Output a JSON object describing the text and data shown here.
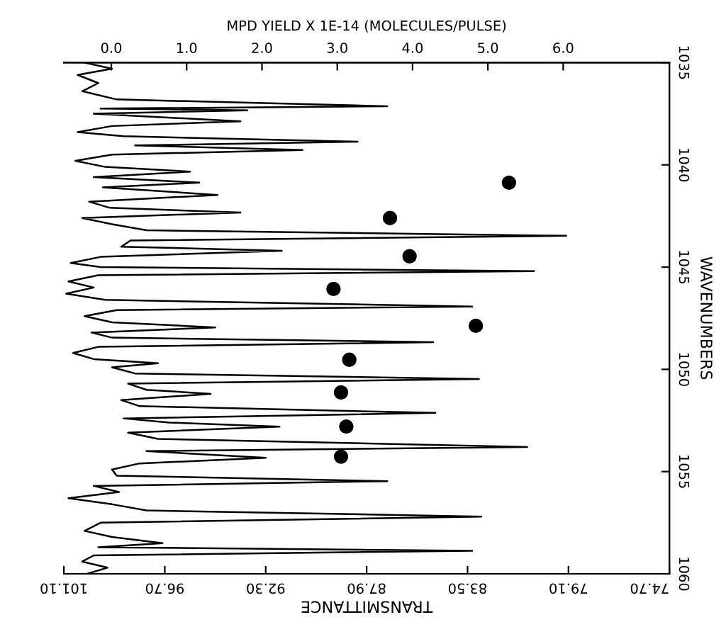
{
  "chart_data": {
    "type": "line",
    "xlabel": "TRANSMITTANCE",
    "x2label": "MPD YIELD X 1E-14 (MOLECULES/PULSE)",
    "ylabel": "WAVENUMBERS",
    "xlim": [
      101.1,
      74.7
    ],
    "xticks": [
      {
        "value": 101.1,
        "label": "101.10"
      },
      {
        "value": 96.7,
        "label": "96.70"
      },
      {
        "value": 92.3,
        "label": "92.30"
      },
      {
        "value": 87.9,
        "label": "87.90"
      },
      {
        "value": 83.5,
        "label": "83.50"
      },
      {
        "value": 79.1,
        "label": "79.10"
      },
      {
        "value": 74.7,
        "label": "74.70"
      }
    ],
    "x2lim": [
      -0.63,
      7.41
    ],
    "x2ticks": [
      {
        "value": 0,
        "label": "0.0"
      },
      {
        "value": 1,
        "label": "1.0"
      },
      {
        "value": 2,
        "label": "2.0"
      },
      {
        "value": 3,
        "label": "3.0"
      },
      {
        "value": 4,
        "label": "4.0"
      },
      {
        "value": 5,
        "label": "5.0"
      },
      {
        "value": 6,
        "label": "6.0"
      }
    ],
    "ylim": [
      1060,
      1035
    ],
    "yticks": [
      1035,
      1040,
      1045,
      1050,
      1055,
      1060
    ],
    "grid": false,
    "series": [
      {
        "color": "#000000",
        "marker": "none",
        "line_style": "solid",
        "x": [
          100.2,
          99.0,
          100.5,
          99.6,
          100.3,
          98.8,
          87.0,
          99.5,
          93.1,
          99.8,
          93.4,
          99.0,
          100.5,
          98.5,
          88.3,
          98.0,
          90.7,
          99.0,
          100.6,
          99.3,
          95.6,
          99.8,
          95.2,
          99.4,
          94.4,
          100.0,
          99.1,
          93.4,
          100.3,
          99.0,
          97.5,
          79.2,
          98.2,
          98.6,
          91.6,
          99.5,
          100.8,
          99.5,
          80.6,
          99.6,
          100.9,
          99.8,
          101.0,
          99.3,
          83.3,
          98.8,
          100.2,
          99.0,
          94.5,
          99.9,
          99.0,
          85.0,
          99.6,
          100.7,
          99.8,
          97.0,
          99.0,
          98.0,
          83.0,
          98.3,
          97.5,
          94.7,
          98.6,
          97.8,
          84.9,
          98.5,
          96.5,
          91.7,
          98.3,
          97.0,
          80.9,
          97.5,
          92.3,
          97.8,
          99.0,
          98.8,
          87.0,
          99.8,
          98.7,
          100.9,
          99.0,
          97.5,
          82.9,
          99.5,
          100.2,
          99.0,
          96.8,
          99.6,
          83.3,
          99.8,
          100.3,
          99.2,
          100.1
        ],
        "values": [
          1035.0,
          1035.3,
          1035.6,
          1036.0,
          1036.4,
          1036.8,
          1037.13,
          1037.25,
          1037.33,
          1037.5,
          1037.87,
          1038.1,
          1038.4,
          1038.6,
          1038.87,
          1039.05,
          1039.27,
          1039.5,
          1039.8,
          1040.1,
          1040.33,
          1040.6,
          1040.87,
          1041.1,
          1041.47,
          1041.8,
          1042.1,
          1042.33,
          1042.6,
          1042.9,
          1043.2,
          1043.47,
          1043.7,
          1044.0,
          1044.2,
          1044.5,
          1044.8,
          1045.0,
          1045.2,
          1045.4,
          1045.7,
          1046.0,
          1046.3,
          1046.6,
          1046.93,
          1047.1,
          1047.4,
          1047.7,
          1047.95,
          1048.2,
          1048.45,
          1048.67,
          1048.9,
          1049.2,
          1049.5,
          1049.7,
          1049.9,
          1050.2,
          1050.47,
          1050.7,
          1051.0,
          1051.2,
          1051.5,
          1051.8,
          1052.13,
          1052.4,
          1052.6,
          1052.8,
          1053.1,
          1053.4,
          1053.8,
          1054.0,
          1054.33,
          1054.6,
          1054.9,
          1055.2,
          1055.47,
          1055.7,
          1056.0,
          1056.3,
          1056.6,
          1056.9,
          1057.2,
          1057.5,
          1057.9,
          1058.2,
          1058.5,
          1058.7,
          1058.87,
          1059.1,
          1059.4,
          1059.7,
          1060.0
        ]
      },
      {
        "type": "scatter",
        "axis": "x2",
        "color": "#000000",
        "marker": "circle",
        "x": [
          5.28,
          3.7,
          3.96,
          2.95,
          4.84,
          3.16,
          3.05,
          3.12,
          3.05
        ],
        "values": [
          1040.87,
          1042.6,
          1044.47,
          1046.07,
          1047.87,
          1049.53,
          1051.13,
          1052.8,
          1054.27
        ]
      }
    ]
  }
}
